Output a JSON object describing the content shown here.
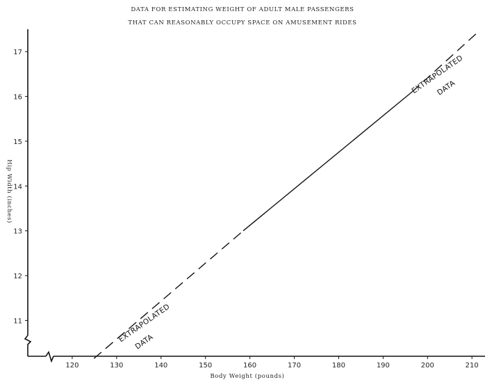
{
  "chart_data": {
    "type": "line",
    "title": "DATA FOR ESTIMATING WEIGHT OF ADULT MALE PASSENGERS",
    "subtitle": "THAT CAN REASONABLY OCCUPY SPACE ON AMUSEMENT RIDES",
    "xlabel": "Body Weight (pounds)",
    "ylabel": "Hip Width (inches)",
    "xlim": [
      110,
      212
    ],
    "ylim": [
      10.2,
      17.5
    ],
    "xticks": [
      120,
      130,
      140,
      150,
      160,
      170,
      180,
      190,
      200,
      210
    ],
    "yticks": [
      11,
      12,
      13,
      14,
      15,
      16,
      17
    ],
    "grid": false,
    "series": [
      {
        "segments": [
          {
            "style": "dashed",
            "x": [
              124.9,
              158.5
            ],
            "y": [
              10.15,
              13.0
            ]
          },
          {
            "style": "solid",
            "x": [
              158.5,
              196.5
            ],
            "y": [
              13.0,
              16.1
            ]
          },
          {
            "style": "dashed",
            "x": [
              196.5,
              211.5
            ],
            "y": [
              16.1,
              17.45
            ]
          }
        ]
      }
    ],
    "annotations": [
      {
        "text": "EXTRAPOLATED",
        "x": 136.5,
        "y": 10.9
      },
      {
        "text": "DATA",
        "x": 136.5,
        "y": 10.48
      },
      {
        "text": "EXTRAPOLATED",
        "x": 202.5,
        "y": 16.45
      },
      {
        "text": "DATA",
        "x": 204.5,
        "y": 16.15
      }
    ]
  }
}
